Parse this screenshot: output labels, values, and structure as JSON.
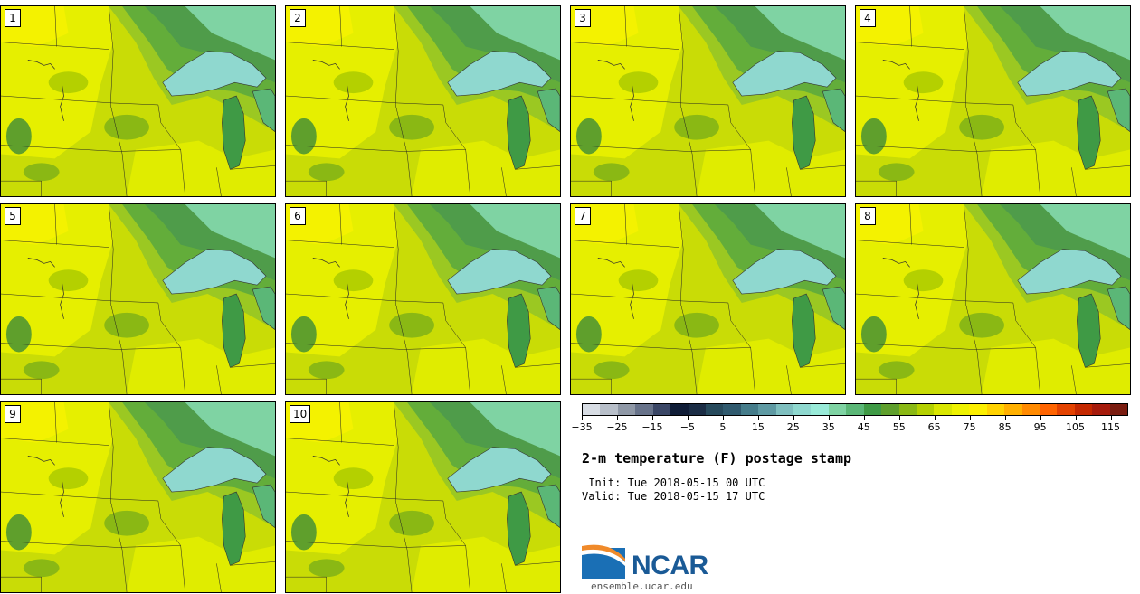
{
  "stamps": [
    "1",
    "2",
    "3",
    "4",
    "5",
    "6",
    "7",
    "8",
    "9",
    "10"
  ],
  "colorbar": {
    "colors": [
      "#d8dde4",
      "#b8bfc9",
      "#8f98a6",
      "#68738a",
      "#3b4766",
      "#101d37",
      "#1b2d45",
      "#274a5c",
      "#305a6e",
      "#457c8a",
      "#5f9aa3",
      "#7fbfbf",
      "#8fd8cf",
      "#99ead8",
      "#7fd3a3",
      "#5bb777",
      "#3f9a45",
      "#5f9f2c",
      "#8ab814",
      "#b4d000",
      "#d9e600",
      "#eef200",
      "#fcef00",
      "#ffd200",
      "#ffb000",
      "#ff8a00",
      "#ff6400",
      "#e34200",
      "#c42800",
      "#a61b0c",
      "#7a1c10"
    ],
    "tick_labels": [
      "−35",
      "−25",
      "−15",
      "−5",
      "5",
      "15",
      "25",
      "35",
      "45",
      "55",
      "65",
      "75",
      "85",
      "95",
      "105",
      "115"
    ]
  },
  "title": "2-m temperature (F) postage stamp",
  "init": " Init: Tue 2018-05-15 00 UTC",
  "valid": "Valid: Tue 2018-05-15 17 UTC",
  "logo_text": "NCAR",
  "url": "ensemble.ucar.edu"
}
